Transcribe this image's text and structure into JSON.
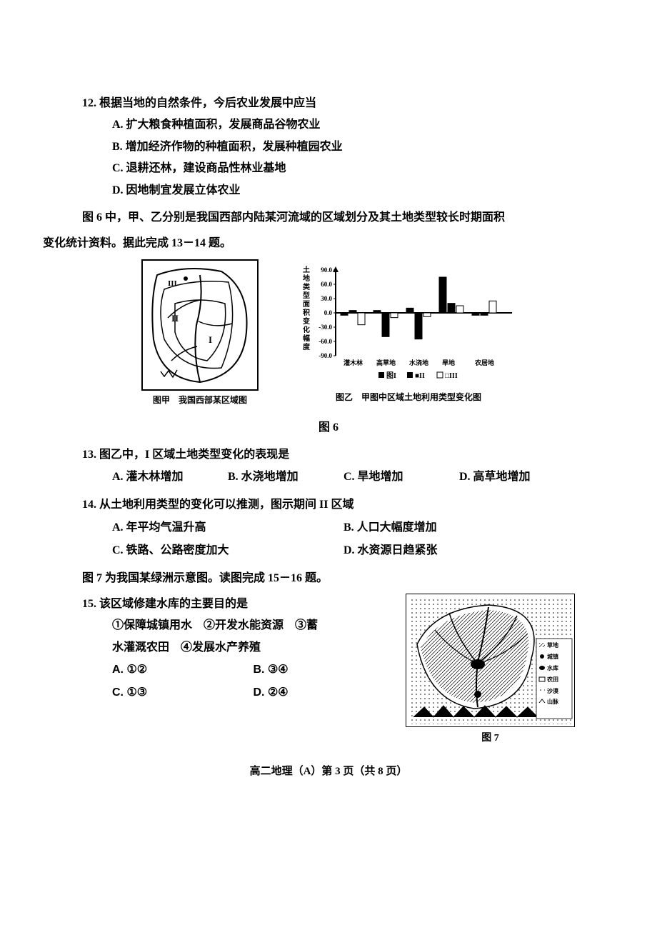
{
  "q12": {
    "stem": "12. 根据当地的自然条件，今后农业发展中应当",
    "A": "A. 扩大粮食种植面积，发展商品谷物农业",
    "B": "B. 增加经济作物的种植面积，发展种植园农业",
    "C": "C. 退耕还林，建设商品性林业基地",
    "D": "D. 因地制宜发展立体农业"
  },
  "intro6": {
    "line1": "图 6 中，甲、乙分别是我国西部内陆某河流域的区域划分及其土地类型较长时期面积",
    "line2": "变化统计资料。据此完成 13－14 题。"
  },
  "fig6": {
    "capA": "图甲　我国西部某区域图",
    "capB": "图乙　甲图中区域土地利用类型变化图",
    "main": "图 6",
    "ylabel": "土地类型面积变化幅度",
    "categories": [
      "灌木林",
      "高草地",
      "水浇地",
      "旱地",
      "农居地"
    ],
    "yticks": [
      "90.0",
      "60.0",
      "30.0",
      "0.0",
      "-30.0",
      "-60.0",
      "-90.0"
    ],
    "series": [
      {
        "name": "I",
        "fill": "#000000",
        "values": [
          -5,
          5,
          10,
          75,
          -5
        ]
      },
      {
        "name": "II",
        "fill": "#000000",
        "values": [
          5,
          -50,
          -55,
          20,
          -5
        ]
      },
      {
        "name": "III",
        "fill": "#ffffff",
        "values": [
          -25,
          -10,
          -8,
          15,
          25
        ]
      }
    ],
    "legend": [
      "图I",
      "■II",
      "□III"
    ]
  },
  "q13": {
    "stem": "13. 图乙中，I 区域土地类型变化的表现是",
    "A": "A. 灌木林增加",
    "B": "B. 水浇地增加",
    "C": "C. 旱地增加",
    "D": "D. 高草地增加"
  },
  "q14": {
    "stem": "14. 从土地利用类型的变化可以推测，图示期间 II 区域",
    "A": "A. 年平均气温升高",
    "B": "B. 人口大幅度增加",
    "C": "C. 铁路、公路密度加大",
    "D": "D. 水资源日趋紧张"
  },
  "intro7": "图 7 为我国某绿洲示意图。读图完成 15－16 题。",
  "q15": {
    "stem": "15. 该区域修建水库的主要目的是",
    "items": "①保障城镇用水　②开发水能资源　③蓄",
    "items2": "水灌溉农田　④发展水产养殖",
    "A": "A. ①②",
    "B": "B. ③④",
    "C": "C. ①③",
    "D": "D. ②④"
  },
  "fig7": {
    "cap": "图 7",
    "legend": [
      "草地",
      "城镇",
      "水库",
      "农田",
      "沙漠",
      "山脉"
    ]
  },
  "footer": "高二地理（A）第 3 页（共 8 页）"
}
